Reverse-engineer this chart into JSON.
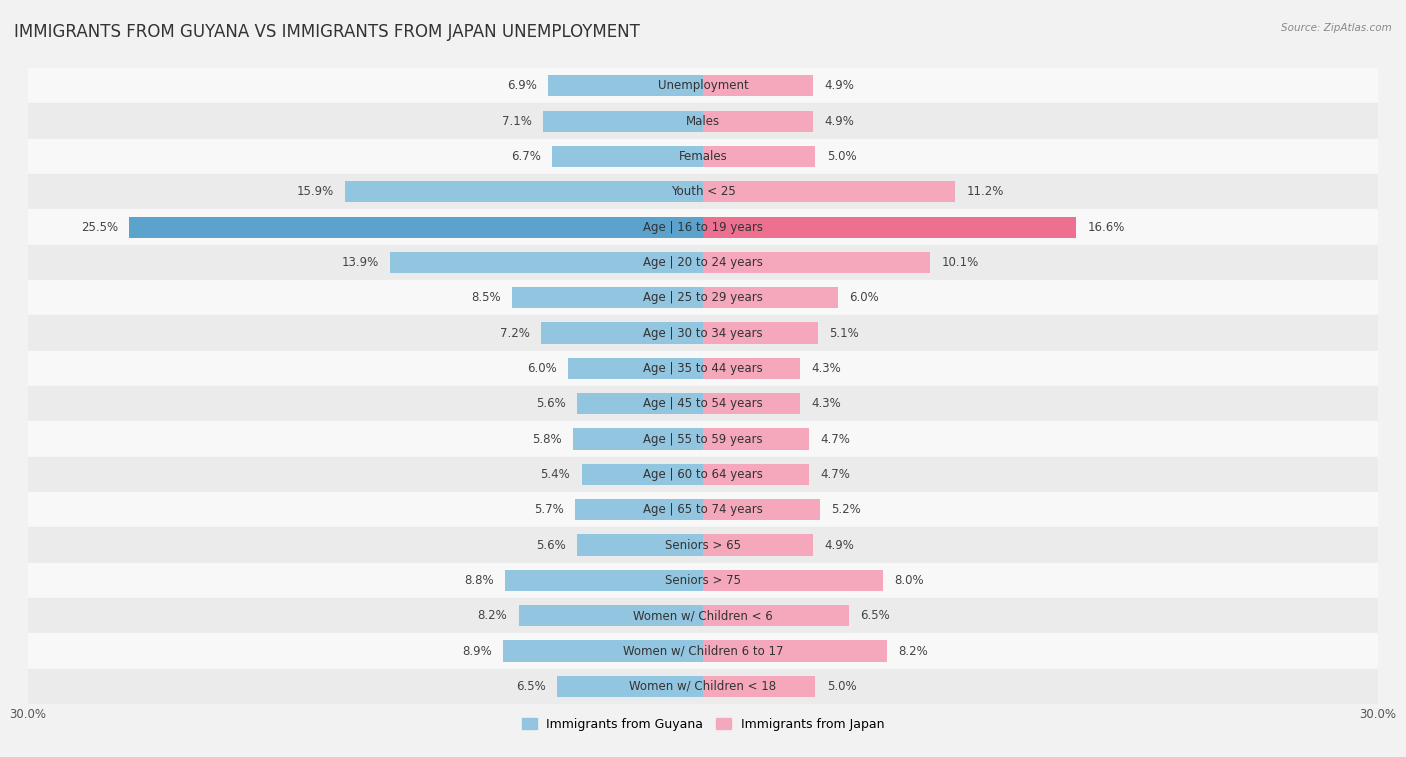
{
  "title": "IMMIGRANTS FROM GUYANA VS IMMIGRANTS FROM JAPAN UNEMPLOYMENT",
  "source_text": "Source: ZipAtlas.com",
  "categories": [
    "Unemployment",
    "Males",
    "Females",
    "Youth < 25",
    "Age | 16 to 19 years",
    "Age | 20 to 24 years",
    "Age | 25 to 29 years",
    "Age | 30 to 34 years",
    "Age | 35 to 44 years",
    "Age | 45 to 54 years",
    "Age | 55 to 59 years",
    "Age | 60 to 64 years",
    "Age | 65 to 74 years",
    "Seniors > 65",
    "Seniors > 75",
    "Women w/ Children < 6",
    "Women w/ Children 6 to 17",
    "Women w/ Children < 18"
  ],
  "guyana_values": [
    6.9,
    7.1,
    6.7,
    15.9,
    25.5,
    13.9,
    8.5,
    7.2,
    6.0,
    5.6,
    5.8,
    5.4,
    5.7,
    5.6,
    8.8,
    8.2,
    8.9,
    6.5
  ],
  "japan_values": [
    4.9,
    4.9,
    5.0,
    11.2,
    16.6,
    10.1,
    6.0,
    5.1,
    4.3,
    4.3,
    4.7,
    4.7,
    5.2,
    4.9,
    8.0,
    6.5,
    8.2,
    5.0
  ],
  "guyana_color": "#92c5e0",
  "japan_color": "#f5a8bc",
  "guyana_highlight_color": "#5ba3cc",
  "japan_highlight_color": "#ee7090",
  "axis_limit": 30.0,
  "bar_height": 0.6,
  "background_color": "#f2f2f2",
  "row_light_color": "#f8f8f8",
  "row_dark_color": "#ebebeb",
  "legend_guyana": "Immigrants from Guyana",
  "legend_japan": "Immigrants from Japan",
  "label_fontsize": 8.5,
  "title_fontsize": 12,
  "value_fontsize": 8.5,
  "tick_fontsize": 8.5
}
